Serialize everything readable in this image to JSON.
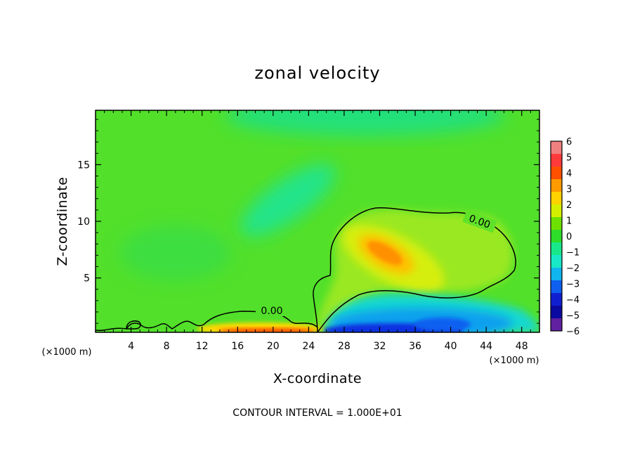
{
  "chart_data": {
    "type": "heatmap",
    "title": "zonal velocity",
    "xlabel": "X-coordinate",
    "ylabel": "Z-coordinate",
    "x_unit_left": "(×1000 m)",
    "x_unit_right": "(×1000 m)",
    "xlim": [
      0,
      50
    ],
    "ylim": [
      0.2,
      19.8
    ],
    "xticks": [
      "4",
      "8",
      "12",
      "16",
      "20",
      "24",
      "28",
      "32",
      "36",
      "40",
      "44",
      "48"
    ],
    "xtick_values": [
      4,
      8,
      12,
      16,
      20,
      24,
      28,
      32,
      36,
      40,
      44,
      48
    ],
    "yticks": [
      "5",
      "10",
      "15"
    ],
    "ytick_values": [
      5,
      10,
      15
    ],
    "colorbar": {
      "min": -6,
      "max": 6,
      "labels": [
        "6",
        "5",
        "4",
        "3",
        "2",
        "1",
        "0",
        "−1",
        "−2",
        "−3",
        "−4",
        "−5",
        "−6"
      ],
      "colors": [
        "#f08080",
        "#ff3a3a",
        "#ff5000",
        "#ff9a00",
        "#ffd200",
        "#d4f000",
        "#6ee000",
        "#30dc2a",
        "#18e88a",
        "#18e8c8",
        "#10b4ee",
        "#1060f0",
        "#1020d0",
        "#0a0aa0",
        "#6020a0"
      ]
    },
    "features": [
      {
        "name": "positive jet core",
        "x": 32.5,
        "z": 7.3,
        "value": 3.2
      },
      {
        "name": "near-surface positive band",
        "x": 20,
        "z": 0.4,
        "value": 4.5
      },
      {
        "name": "low-level negative flow",
        "x": 33,
        "z": 1.2,
        "value": -5.5
      },
      {
        "name": "upper negative tongue",
        "x": 19,
        "z": 11,
        "value": -1.6
      }
    ],
    "contour_label": "0.00",
    "contour_label_2": "0.00",
    "footer": "CONTOUR INTERVAL = 1.000E+01"
  }
}
